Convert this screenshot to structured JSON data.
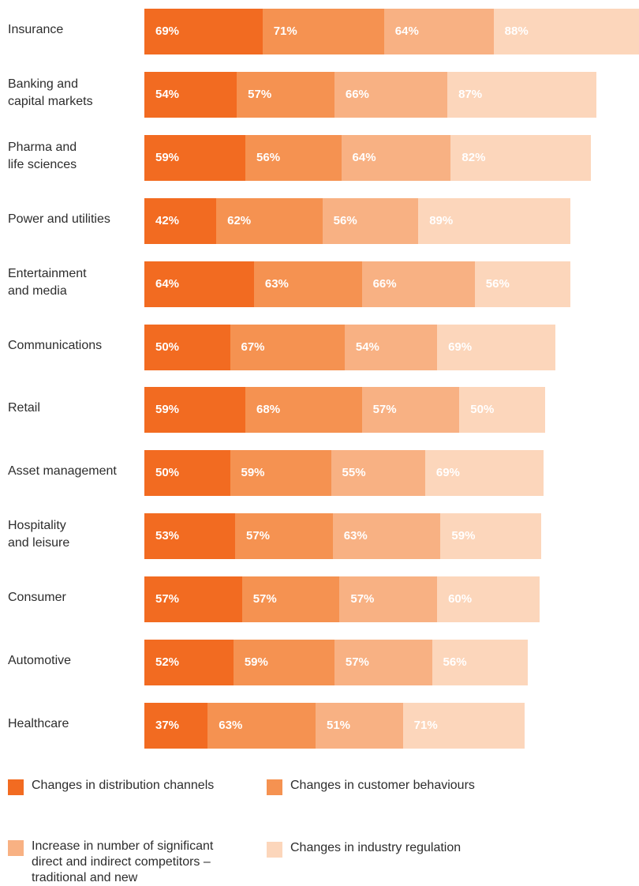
{
  "chart_data": {
    "type": "bar",
    "orientation": "horizontal",
    "stacked": true,
    "categories": [
      "Insurance",
      "Banking and\ncapital markets",
      "Pharma and\nlife sciences",
      "Power and utilities",
      "Entertainment\nand media",
      "Communications",
      "Retail",
      "Asset management",
      "Hospitality\nand leisure",
      "Consumer",
      "Automotive",
      "Healthcare"
    ],
    "series": [
      {
        "name": "Changes in distribution channels",
        "color": "#f26b21",
        "label_color": "#ffffff",
        "values": [
          69,
          54,
          59,
          42,
          64,
          50,
          59,
          50,
          53,
          57,
          52,
          37
        ]
      },
      {
        "name": "Changes in customer behaviours",
        "color": "#f59251",
        "label_color": "#ffffff",
        "values": [
          71,
          57,
          56,
          62,
          63,
          67,
          68,
          59,
          57,
          57,
          59,
          63
        ]
      },
      {
        "name": "Increase in number of significant direct and indirect competitors – traditional and new",
        "color": "#f8b183",
        "label_color": "#ffffff",
        "values": [
          64,
          66,
          64,
          56,
          66,
          54,
          57,
          55,
          63,
          57,
          57,
          51
        ]
      },
      {
        "name": "Changes in industry regulation",
        "color": "#fcd6bb",
        "label_color": "#ffffff",
        "values": [
          88,
          87,
          82,
          89,
          56,
          69,
          50,
          69,
          59,
          60,
          56,
          71
        ]
      }
    ],
    "value_suffix": "%",
    "grid": false,
    "legend_position": "bottom"
  }
}
